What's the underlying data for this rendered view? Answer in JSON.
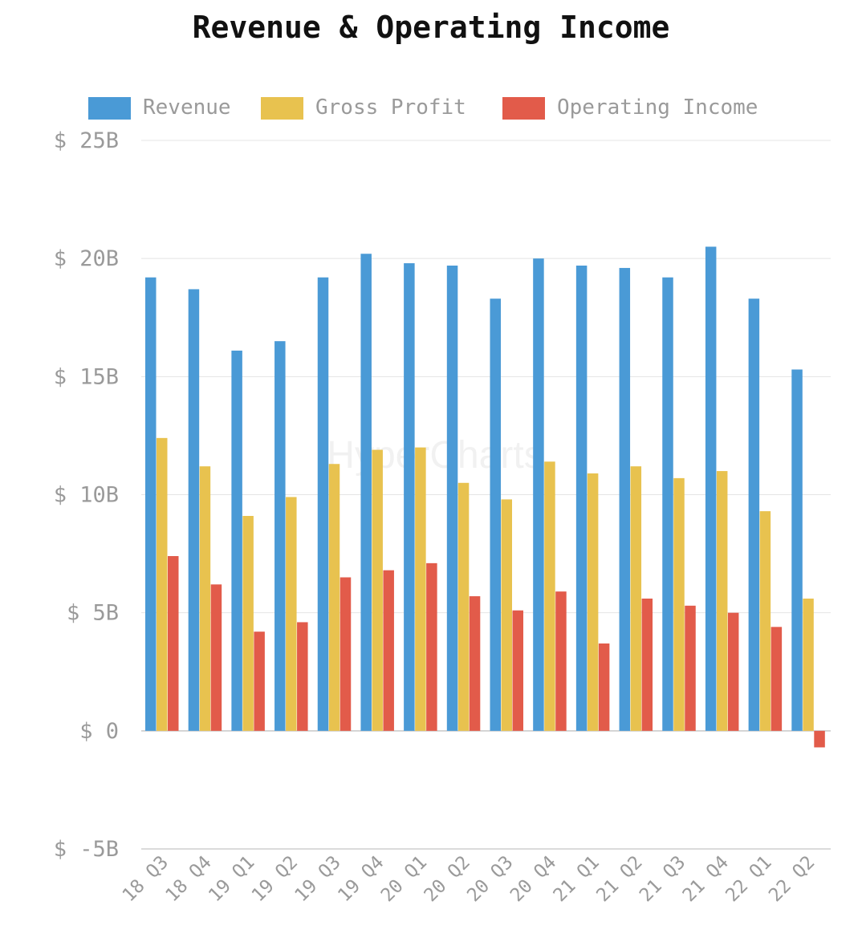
{
  "chart_data": {
    "type": "bar",
    "title": "Revenue & Operating Income",
    "watermark": "HyperCharts",
    "categories": [
      "18 Q3",
      "18 Q4",
      "19 Q1",
      "19 Q2",
      "19 Q3",
      "19 Q4",
      "20 Q1",
      "20 Q2",
      "20 Q3",
      "20 Q4",
      "21 Q1",
      "21 Q2",
      "21 Q3",
      "21 Q4",
      "22 Q1",
      "22 Q2"
    ],
    "series": [
      {
        "name": "Revenue",
        "color": "#4a9ad6",
        "values": [
          19.2,
          18.7,
          16.1,
          16.5,
          19.2,
          20.2,
          19.8,
          19.7,
          18.3,
          20.0,
          19.7,
          19.6,
          19.2,
          20.5,
          18.3,
          15.3
        ]
      },
      {
        "name": "Gross Profit",
        "color": "#e8c24f",
        "values": [
          12.4,
          11.2,
          9.1,
          9.9,
          11.3,
          11.9,
          12.0,
          10.5,
          9.8,
          11.4,
          10.9,
          11.2,
          10.7,
          11.0,
          9.3,
          5.6
        ]
      },
      {
        "name": "Operating Income",
        "color": "#e25b4a",
        "values": [
          7.4,
          6.2,
          4.2,
          4.6,
          6.5,
          6.8,
          7.1,
          5.7,
          5.1,
          5.9,
          3.7,
          5.6,
          5.3,
          5.0,
          4.4,
          -0.7
        ]
      }
    ],
    "ylim": [
      -5,
      25
    ],
    "yticks": [
      25,
      20,
      15,
      10,
      5,
      0,
      -5
    ],
    "ytick_labels": [
      "$ 25B",
      "$ 20B",
      "$ 15B",
      "$ 10B",
      "$ 5B",
      "$ 0",
      "$ -5B"
    ],
    "unit": "B",
    "grid": true,
    "legend_position": "top"
  }
}
